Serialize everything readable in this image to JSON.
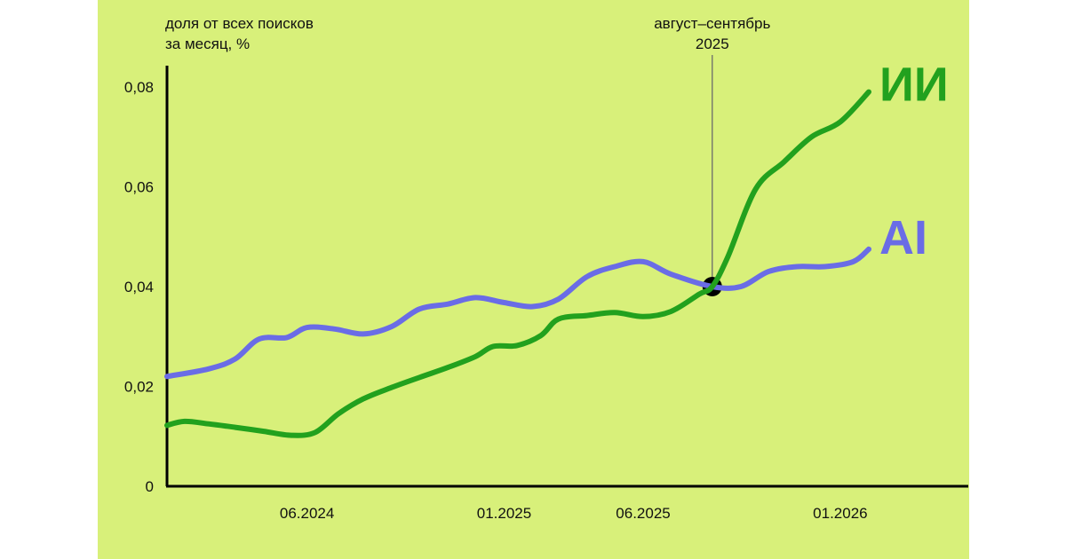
{
  "chart_data": {
    "type": "line",
    "ylabel": "доля от всех поисков за месяц, %",
    "ylabel_lines": [
      "доля от всех поисков",
      "за месяц, %"
    ],
    "ylim": [
      0,
      0.08
    ],
    "y_ticks": [
      {
        "value": 0,
        "label": "0"
      },
      {
        "value": 0.02,
        "label": "0,02"
      },
      {
        "value": 0.04,
        "label": "0,04"
      },
      {
        "value": 0.06,
        "label": "0,06"
      },
      {
        "value": 0.08,
        "label": "0,08"
      }
    ],
    "x_range": [
      "2024-01-01",
      "2026-05-20"
    ],
    "x_ticks": [
      {
        "value": "2024-06-01",
        "label": "06.2024"
      },
      {
        "value": "2025-01-01",
        "label": "01.2025"
      },
      {
        "value": "2025-06-01",
        "label": "06.2025"
      },
      {
        "value": "2026-01-01",
        "label": "01.2026"
      }
    ],
    "annotation": {
      "date": "2025-08-15",
      "lines": [
        "август–сентябрь",
        "2025"
      ],
      "y": 0.04
    },
    "series": [
      {
        "name": "ИИ",
        "color": "#22a11e",
        "points": [
          [
            "2024-01-01",
            0.0122
          ],
          [
            "2024-01-20",
            0.013
          ],
          [
            "2024-02-15",
            0.0125
          ],
          [
            "2024-03-15",
            0.0118
          ],
          [
            "2024-04-15",
            0.011
          ],
          [
            "2024-05-15",
            0.0102
          ],
          [
            "2024-06-10",
            0.0108
          ],
          [
            "2024-07-05",
            0.0145
          ],
          [
            "2024-08-01",
            0.0175
          ],
          [
            "2024-09-01",
            0.0198
          ],
          [
            "2024-10-01",
            0.0218
          ],
          [
            "2024-11-01",
            0.0238
          ],
          [
            "2024-12-01",
            0.026
          ],
          [
            "2024-12-20",
            0.028
          ],
          [
            "2025-01-15",
            0.0282
          ],
          [
            "2025-02-10",
            0.0302
          ],
          [
            "2025-03-01",
            0.0335
          ],
          [
            "2025-04-01",
            0.0342
          ],
          [
            "2025-05-01",
            0.0348
          ],
          [
            "2025-06-01",
            0.034
          ],
          [
            "2025-07-01",
            0.035
          ],
          [
            "2025-08-01",
            0.0385
          ],
          [
            "2025-08-15",
            0.04
          ],
          [
            "2025-09-01",
            0.046
          ],
          [
            "2025-10-01",
            0.0595
          ],
          [
            "2025-11-01",
            0.065
          ],
          [
            "2025-12-01",
            0.07
          ],
          [
            "2026-01-01",
            0.073
          ],
          [
            "2026-02-01",
            0.079
          ]
        ]
      },
      {
        "name": "AI",
        "color": "#6a6ce6",
        "points": [
          [
            "2024-01-01",
            0.022
          ],
          [
            "2024-02-15",
            0.0235
          ],
          [
            "2024-03-15",
            0.0255
          ],
          [
            "2024-04-10",
            0.0295
          ],
          [
            "2024-05-10",
            0.0298
          ],
          [
            "2024-06-01",
            0.0318
          ],
          [
            "2024-07-01",
            0.0315
          ],
          [
            "2024-08-01",
            0.0305
          ],
          [
            "2024-09-01",
            0.032
          ],
          [
            "2024-10-01",
            0.0355
          ],
          [
            "2024-11-01",
            0.0365
          ],
          [
            "2024-12-01",
            0.0378
          ],
          [
            "2025-01-01",
            0.0368
          ],
          [
            "2025-02-01",
            0.036
          ],
          [
            "2025-03-01",
            0.0375
          ],
          [
            "2025-04-01",
            0.042
          ],
          [
            "2025-05-01",
            0.044
          ],
          [
            "2025-06-01",
            0.045
          ],
          [
            "2025-07-01",
            0.0425
          ],
          [
            "2025-08-15",
            0.04
          ],
          [
            "2025-09-15",
            0.04
          ],
          [
            "2025-10-15",
            0.043
          ],
          [
            "2025-11-15",
            0.044
          ],
          [
            "2025-12-15",
            0.044
          ],
          [
            "2026-01-15",
            0.045
          ],
          [
            "2026-02-01",
            0.0475
          ]
        ]
      }
    ]
  }
}
